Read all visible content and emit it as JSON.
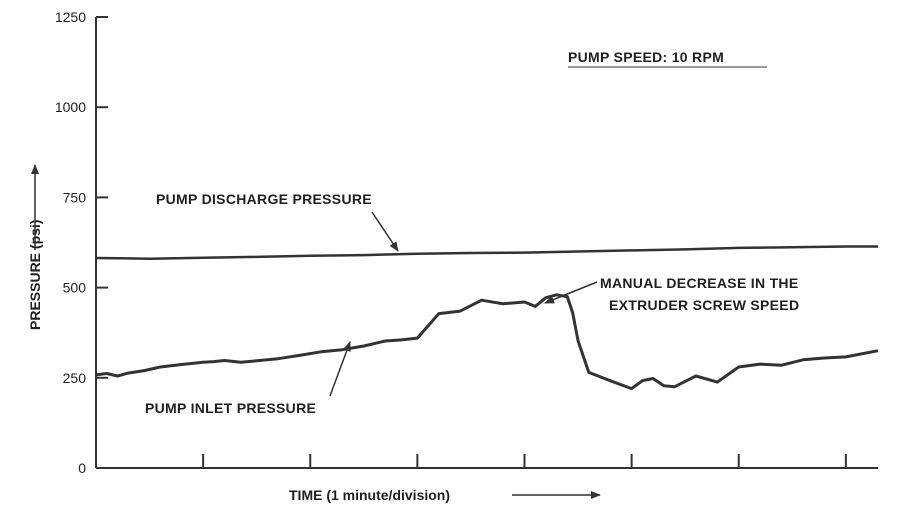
{
  "chart_data": {
    "type": "line",
    "title": "",
    "header_note": "PUMP SPEED: 10 RPM",
    "xlabel": "TIME (1 minute/division)",
    "ylabel": "PRESSURE (psi)",
    "ylim": [
      0,
      1250
    ],
    "xlim": [
      0,
      7.3
    ],
    "y_ticks": [
      0,
      250,
      500,
      750,
      1000,
      1250
    ],
    "x_tick_count": 8,
    "grid": false,
    "legend": "none",
    "line_color": "#333333",
    "series": [
      {
        "name": "PUMP DISCHARGE PRESSURE",
        "x": [
          0,
          0.5,
          1.0,
          1.5,
          2.0,
          2.5,
          3.0,
          3.5,
          4.0,
          4.5,
          5.0,
          5.5,
          6.0,
          6.5,
          7.0,
          7.3
        ],
        "values": [
          582,
          580,
          583,
          585,
          588,
          590,
          594,
          596,
          597,
          600,
          603,
          606,
          610,
          612,
          614,
          614
        ]
      },
      {
        "name": "PUMP INLET PRESSURE",
        "x": [
          0,
          0.1,
          0.2,
          0.3,
          0.45,
          0.6,
          0.8,
          1.0,
          1.1,
          1.2,
          1.35,
          1.5,
          1.7,
          1.9,
          2.1,
          2.3,
          2.5,
          2.7,
          2.85,
          3.0,
          3.2,
          3.4,
          3.6,
          3.8,
          4.0,
          4.1,
          4.2,
          4.3,
          4.4,
          4.45,
          4.5,
          4.6,
          4.8,
          5.0,
          5.1,
          5.2,
          5.3,
          5.4,
          5.6,
          5.8,
          6.0,
          6.2,
          6.4,
          6.6,
          6.8,
          7.0,
          7.3
        ],
        "values": [
          258,
          262,
          255,
          263,
          270,
          280,
          287,
          293,
          295,
          298,
          293,
          297,
          303,
          312,
          322,
          328,
          338,
          352,
          355,
          360,
          428,
          435,
          465,
          455,
          460,
          448,
          472,
          480,
          475,
          430,
          352,
          265,
          242,
          220,
          242,
          248,
          228,
          225,
          255,
          238,
          280,
          288,
          285,
          300,
          305,
          308,
          325
        ]
      }
    ],
    "annotations": [
      {
        "text": "PUMP DISCHARGE PRESSURE",
        "series": "PUMP DISCHARGE PRESSURE",
        "arrow_to": [
          2.85,
          595
        ]
      },
      {
        "text": "PUMP INLET PRESSURE",
        "series": "PUMP INLET PRESSURE",
        "arrow_to": [
          2.35,
          340
        ]
      },
      {
        "text": "MANUAL DECREASE IN THE",
        "arrow_to": [
          4.3,
          470
        ]
      },
      {
        "text": "EXTRUDER SCREW SPEED"
      }
    ]
  }
}
